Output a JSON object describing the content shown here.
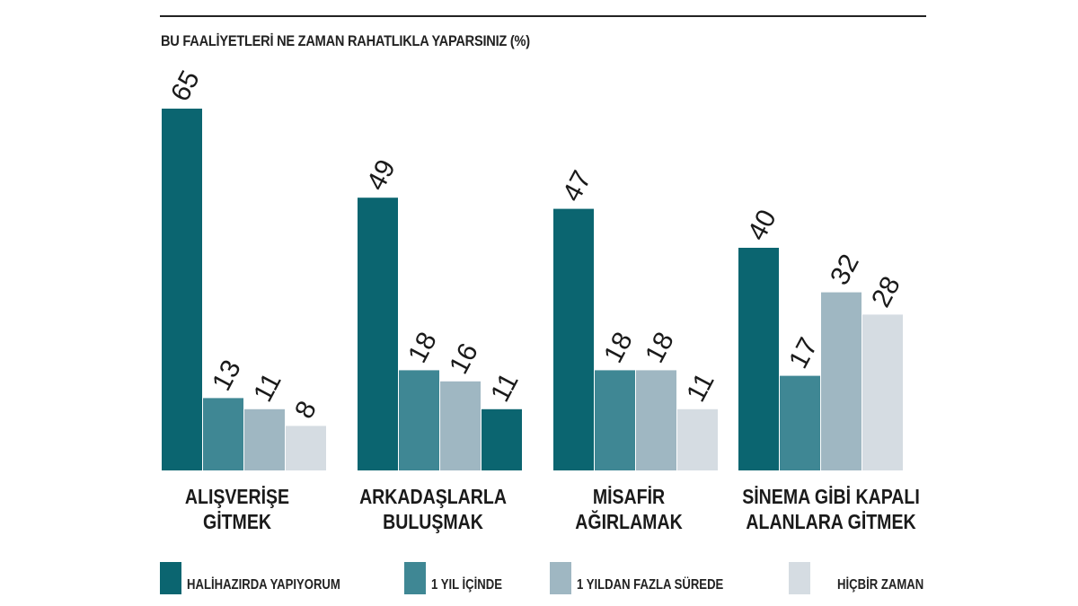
{
  "chart_data": {
    "type": "bar",
    "title": "BU FAALİYETLERİ NE ZAMAN RAHATLIKLA YAPARSINIZ (%)",
    "categories": [
      [
        "ALIŞVERİŞE",
        "GİTMEK"
      ],
      [
        "ARKADAŞLARLA",
        "BULUŞMAK"
      ],
      [
        "MİSAFİR",
        "AĞIRLAMAK"
      ],
      [
        "SİNEMA GİBİ KAPALI",
        "ALANLARA GİTMEK"
      ]
    ],
    "series": [
      {
        "name": "HALİHAZIRDA YAPIYORUM",
        "values": [
          65,
          49,
          47,
          40
        ],
        "color": "#0b6570"
      },
      {
        "name": "1 YIL İÇİNDE",
        "values": [
          13,
          18,
          18,
          17
        ],
        "color": "#3f8794"
      },
      {
        "name": "1 YILDAN FAZLA SÜREDE",
        "values": [
          11,
          16,
          18,
          32
        ],
        "color": "#9fb7c2"
      },
      {
        "name": "HİÇBİR ZAMAN",
        "values": [
          8,
          11,
          11,
          28
        ],
        "color": "#d5dce2"
      }
    ],
    "bar_color_overrides": [
      {
        "category": 1,
        "series": 3,
        "color": "#0b6570"
      }
    ],
    "ylim": [
      0,
      65
    ],
    "grid": false,
    "legend_position": "bottom"
  }
}
